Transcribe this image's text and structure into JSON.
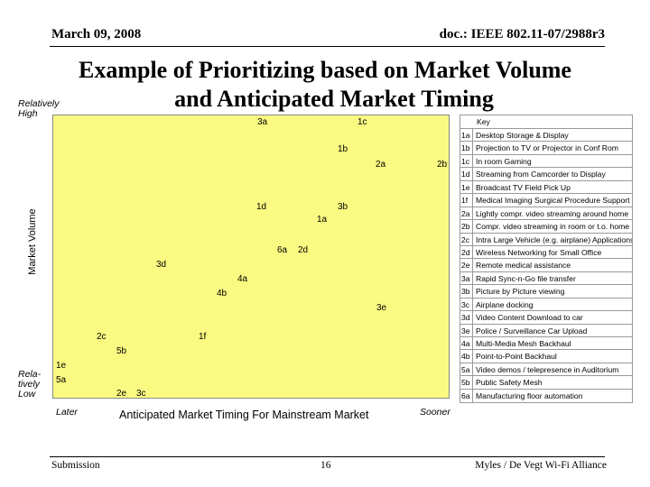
{
  "header": {
    "date": "March 09, 2008",
    "doc": "doc.: IEEE 802.11-07/2988r3"
  },
  "title": {
    "line1": "Example of Prioritizing based on Market Volume",
    "line2": "and Anticipated Market Timing"
  },
  "y_axis": {
    "label": "Market Volume",
    "high": "Relatively High",
    "low_lines": [
      "Rela-",
      "tively",
      "Low"
    ]
  },
  "x_axis": {
    "label": "Anticipated Market Timing For Mainstream Market",
    "later": "Later",
    "sooner": "Sooner"
  },
  "colors": {
    "plot_bg": "#fafa82"
  },
  "points": [
    "3a",
    "1c",
    "1b",
    "2a",
    "2b",
    "1d",
    "3b",
    "1a",
    "6a",
    "2d",
    "3d",
    "4a",
    "4b",
    "3e",
    "2c",
    "1f",
    "5b",
    "1e",
    "5a",
    "2e",
    "3c"
  ],
  "key": {
    "title": "Key",
    "rows": [
      {
        "code": "1a",
        "desc": "Desktop Storage & Display"
      },
      {
        "code": "1b",
        "desc": "Projection to TV or Projector in Conf Rom"
      },
      {
        "code": "1c",
        "desc": "In room Gaming"
      },
      {
        "code": "1d",
        "desc": "Streaming from Camcorder to Display"
      },
      {
        "code": "1e",
        "desc": "Broadcast TV Field Pick Up"
      },
      {
        "code": "1f",
        "desc": "Medical Imaging Surgical Procedure Support"
      },
      {
        "code": "2a",
        "desc": "Lightly compr. video streaming around home"
      },
      {
        "code": "2b",
        "desc": "Compr. video streaming in room or t.o. home"
      },
      {
        "code": "2c",
        "desc": "Intra Large Vehicle (e.g. airplane) Applications"
      },
      {
        "code": "2d",
        "desc": "Wireless Networking for Small Office"
      },
      {
        "code": "2e",
        "desc": "Remote medical assistance"
      },
      {
        "code": "3a",
        "desc": "Rapid Sync-n-Go file transfer"
      },
      {
        "code": "3b",
        "desc": "Picture by Picture viewing"
      },
      {
        "code": "3c",
        "desc": "Airplane docking"
      },
      {
        "code": "3d",
        "desc": "Video Content Download to car"
      },
      {
        "code": "3e",
        "desc": "Police / Surveillance Car Upload"
      },
      {
        "code": "4a",
        "desc": "Multi-Media Mesh Backhaul"
      },
      {
        "code": "4b",
        "desc": "Point-to-Point Backhaul"
      },
      {
        "code": "5a",
        "desc": "Video demos / telepresence in Auditorium"
      },
      {
        "code": "5b",
        "desc": "Public Safety Mesh"
      },
      {
        "code": "6a",
        "desc": "Manufacturing floor automation"
      }
    ]
  },
  "footer": {
    "left": "Submission",
    "page": "16",
    "right": "Myles / De Vegt Wi-Fi Alliance"
  }
}
